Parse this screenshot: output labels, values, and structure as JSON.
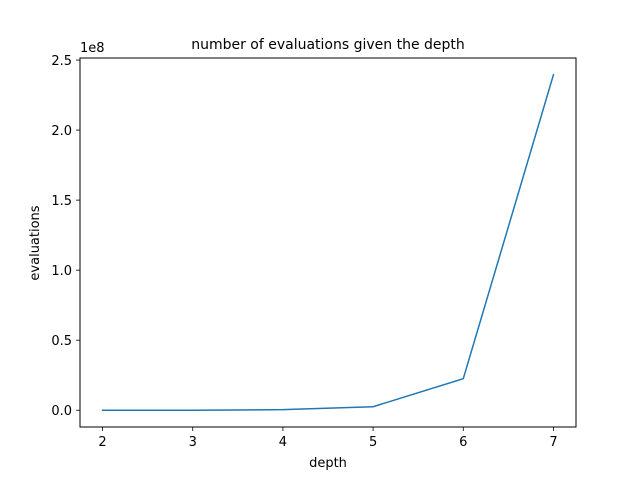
{
  "chart_data": {
    "type": "line",
    "title": "number of evaluations given the depth",
    "xlabel": "depth",
    "ylabel": "evaluations",
    "y_offset_text": "1e8",
    "x": [
      2,
      3,
      4,
      5,
      6,
      7
    ],
    "series": [
      {
        "values": [
          1000,
          8000,
          420000,
          2500000,
          22500000,
          239500000
        ],
        "color": "#1f77b4"
      }
    ],
    "xlim": [
      1.75,
      7.25
    ],
    "ylim": [
      -11975000,
      251475000
    ],
    "x_ticks": [
      2,
      3,
      4,
      5,
      6,
      7
    ],
    "x_tick_labels": [
      "2",
      "3",
      "4",
      "5",
      "6",
      "7"
    ],
    "y_ticks": [
      0,
      50000000,
      100000000,
      150000000,
      200000000,
      250000000
    ],
    "y_tick_labels": [
      "0.0",
      "0.5",
      "1.0",
      "1.5",
      "2.0",
      "2.5"
    ],
    "grid": false,
    "legend": false
  }
}
